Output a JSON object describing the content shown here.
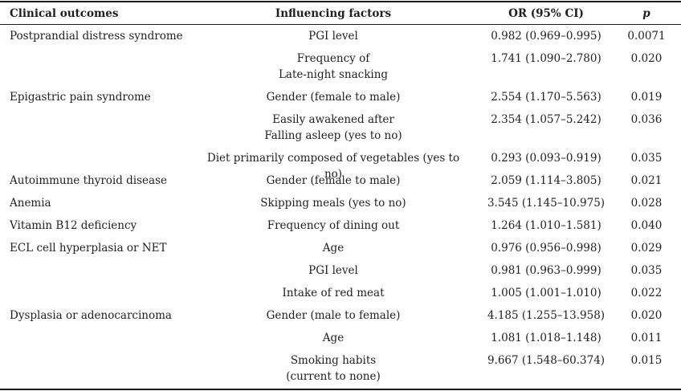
{
  "headers": {
    "outcome": "Clinical outcomes",
    "factor": "Influencing factors",
    "or": "OR (95% CI)",
    "p": "p"
  },
  "rows": [
    {
      "outcome": "Postprandial distress syndrome",
      "factor": [
        "PGI level"
      ],
      "or": "0.982 (0.969–0.995)",
      "p": "0.0071"
    },
    {
      "outcome": "",
      "factor": [
        "Frequency of",
        "Late-night snacking"
      ],
      "or": "1.741 (1.090–2.780)",
      "p": "0.020"
    },
    {
      "outcome": "Epigastric pain syndrome",
      "factor": [
        "Gender (female to male)"
      ],
      "or": "2.554 (1.170–5.563)",
      "p": "0.019"
    },
    {
      "outcome": "",
      "factor": [
        "Easily awakened after",
        "Falling asleep (yes to no)"
      ],
      "or": "2.354 (1.057–5.242)",
      "p": "0.036"
    },
    {
      "outcome": "",
      "factor": [
        "Diet primarily composed of vegetables (yes to no)"
      ],
      "or": "0.293 (0.093–0.919)",
      "p": "0.035"
    },
    {
      "outcome": "Autoimmune thyroid disease",
      "factor": [
        "Gender (female to male)"
      ],
      "or": "2.059 (1.114–3.805)",
      "p": "0.021"
    },
    {
      "outcome": "Anemia",
      "factor": [
        "Skipping meals (yes to no)"
      ],
      "or": "3.545 (1.145–10.975)",
      "p": "0.028"
    },
    {
      "outcome": "Vitamin B12 deficiency",
      "factor": [
        "Frequency of dining out"
      ],
      "or": "1.264 (1.010–1.581)",
      "p": "0.040"
    },
    {
      "outcome": "ECL cell hyperplasia or NET",
      "factor": [
        "Age"
      ],
      "or": "0.976 (0.956–0.998)",
      "p": "0.029"
    },
    {
      "outcome": "",
      "factor": [
        "PGI level"
      ],
      "or": "0.981 (0.963–0.999)",
      "p": "0.035"
    },
    {
      "outcome": "",
      "factor": [
        "Intake of red meat"
      ],
      "or": "1.005 (1.001–1.010)",
      "p": "0.022"
    },
    {
      "outcome": "Dysplasia or adenocarcinoma",
      "factor": [
        "Gender (male to female)"
      ],
      "or": "4.185 (1.255–13.958)",
      "p": "0.020"
    },
    {
      "outcome": "",
      "factor": [
        "Age"
      ],
      "or": "1.081 (1.018–1.148)",
      "p": "0.011"
    },
    {
      "outcome": "",
      "factor": [
        "Smoking habits",
        "(current to none)"
      ],
      "or": "9.667 (1.548–60.374)",
      "p": "0.015"
    }
  ]
}
